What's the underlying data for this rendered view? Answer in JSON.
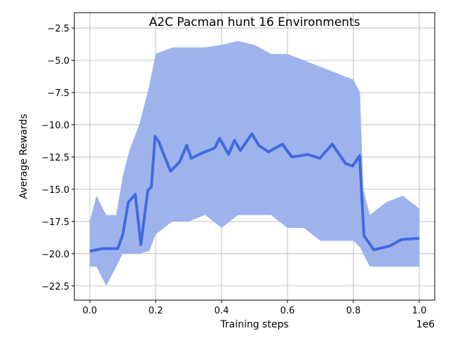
{
  "chart_data": {
    "type": "line",
    "title": "A2C Pacman hunt 16 Environments",
    "xlabel": "Training steps",
    "ylabel": "Average Rewards",
    "x_offset_label": "1e6",
    "xlim": [
      -0.047,
      1.047
    ],
    "ylim": [
      -23.6,
      -1.3
    ],
    "xticks": [
      0.0,
      0.2,
      0.4,
      0.6,
      0.8,
      1.0
    ],
    "xtick_labels": [
      "0.0",
      "0.2",
      "0.4",
      "0.6",
      "0.8",
      "1.0"
    ],
    "yticks": [
      -2.5,
      -5.0,
      -7.5,
      -10.0,
      -12.5,
      -15.0,
      -17.5,
      -20.0,
      -22.5
    ],
    "ytick_labels": [
      "−2.5",
      "−5.0",
      "−7.5",
      "−10.0",
      "−12.5",
      "−15.0",
      "−17.5",
      "−20.0",
      "−22.5"
    ],
    "grid": true,
    "colors": {
      "line": "#4169e1",
      "band": "#9eb3ec",
      "grid": "#b0b0b0"
    },
    "raw_band": {
      "x": [
        0,
        0.02,
        0.05,
        0.08,
        0.1,
        0.12,
        0.15,
        0.18,
        0.2,
        0.25,
        0.3,
        0.35,
        0.4,
        0.45,
        0.5,
        0.55,
        0.6,
        0.65,
        0.7,
        0.75,
        0.8,
        0.82,
        0.83,
        0.85,
        0.9,
        0.95,
        1.0
      ],
      "upper": [
        -17.5,
        -15.5,
        -17,
        -17,
        -14,
        -12,
        -10,
        -7,
        -4.5,
        -4,
        -4,
        -4,
        -3.8,
        -3.5,
        -3.8,
        -4.5,
        -4.5,
        -5,
        -5.5,
        -6,
        -6.5,
        -7.5,
        -15,
        -17,
        -16,
        -15.5,
        -16.5
      ],
      "lower": [
        -21,
        -21,
        -22.5,
        -21,
        -20,
        -20,
        -20,
        -19.8,
        -18.5,
        -17.5,
        -17.5,
        -17,
        -18,
        -17,
        -17,
        -17,
        -18,
        -18,
        -19,
        -19,
        -19,
        -19.5,
        -20,
        -21,
        -21,
        -21,
        -21
      ]
    },
    "series": [
      {
        "x": [
          0,
          0.04,
          0.085,
          0.1,
          0.117,
          0.138,
          0.155,
          0.176,
          0.187,
          0.198,
          0.209,
          0.223,
          0.245,
          0.272,
          0.294,
          0.308,
          0.34,
          0.379,
          0.394,
          0.421,
          0.439,
          0.457,
          0.492,
          0.513,
          0.542,
          0.585,
          0.613,
          0.662,
          0.698,
          0.736,
          0.776,
          0.798,
          0.819,
          0.832,
          0.862,
          0.91,
          0.946,
          1.0
        ],
        "y": [
          -19.8,
          -19.6,
          -19.6,
          -18.5,
          -16.0,
          -15.4,
          -19.3,
          -15.1,
          -14.8,
          -10.9,
          -11.3,
          -12.2,
          -13.6,
          -12.9,
          -11.6,
          -12.6,
          -12.2,
          -11.8,
          -11.05,
          -12.3,
          -11.2,
          -12.0,
          -10.7,
          -11.6,
          -12.1,
          -11.5,
          -12.5,
          -12.3,
          -12.6,
          -11.5,
          -13.0,
          -13.2,
          -12.4,
          -18.6,
          -19.7,
          -19.4,
          -18.9,
          -18.8
        ]
      }
    ]
  }
}
